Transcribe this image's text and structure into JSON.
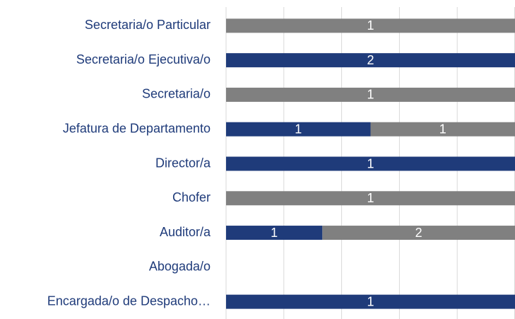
{
  "chart_data": {
    "type": "bar",
    "orientation": "horizontal",
    "stack": "percent",
    "categories": [
      "Secretaria/o Particular",
      "Secretaria/o Ejecutiva/o",
      "Secretaria/o",
      "Jefatura de Departamento",
      "Director/a",
      "Chofer",
      "Auditor/a",
      "Abogada/o",
      "Encargada/o de Despacho…"
    ],
    "series": [
      {
        "color": "#1f3b7a",
        "values": [
          null,
          2,
          null,
          1,
          1,
          null,
          1,
          null,
          1
        ]
      },
      {
        "color": "#808080",
        "values": [
          1,
          null,
          1,
          1,
          null,
          1,
          2,
          null,
          null
        ]
      }
    ],
    "xlim": [
      0,
      100
    ],
    "xticks": [
      0,
      20,
      40,
      60,
      80,
      100
    ],
    "grid": true
  }
}
